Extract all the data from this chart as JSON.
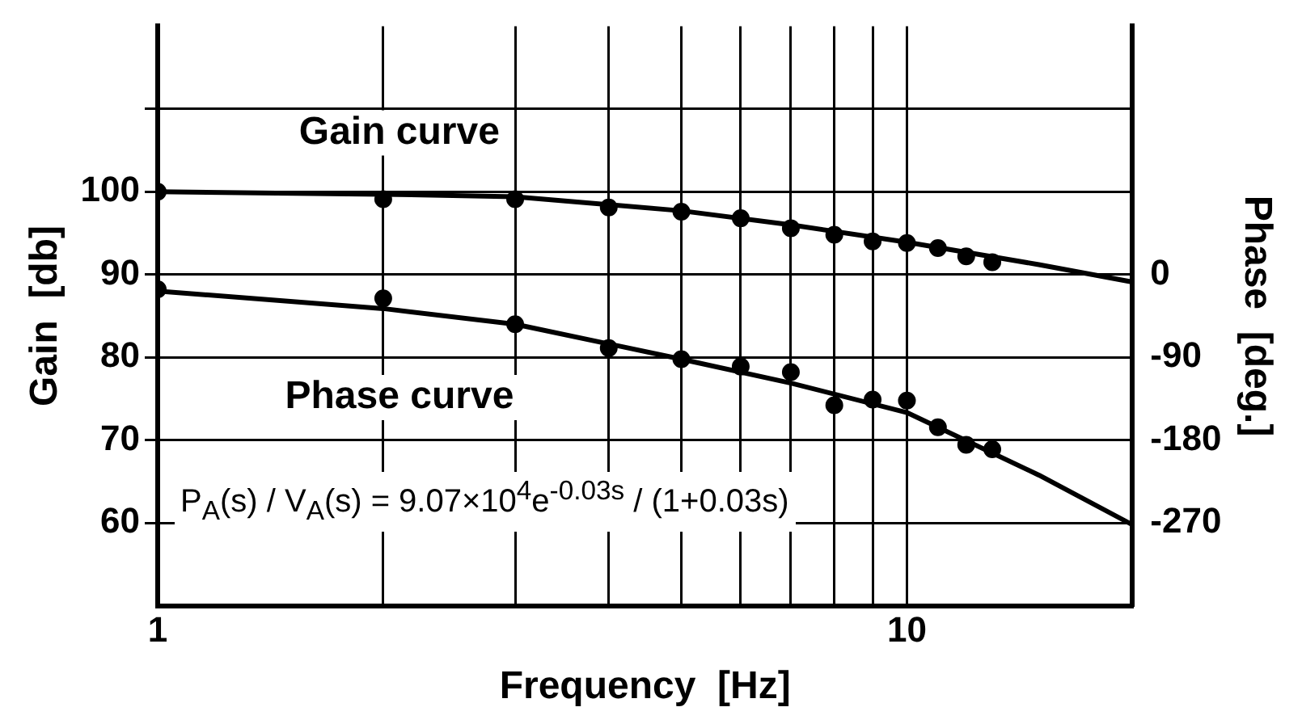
{
  "chart_data": {
    "type": "scatter",
    "xlabel": "Frequency  [Hz]",
    "ylabel": "Gain  [db]",
    "y2label": "Phase  [deg.]",
    "log": "x",
    "grid": true,
    "legend": false,
    "marker": "circle",
    "xlim": [
      1,
      20
    ],
    "xticks": [
      1,
      {
        "value": 2,
        "label": null
      },
      {
        "value": 3,
        "label": null
      },
      {
        "value": 4,
        "label": null
      },
      {
        "value": 5,
        "label": null
      },
      {
        "value": 6,
        "label": null
      },
      {
        "value": 7,
        "label": null
      },
      {
        "value": 8,
        "label": null
      },
      {
        "value": 9,
        "label": null
      },
      10
    ],
    "ylim": [
      50,
      120
    ],
    "yticks": [
      60,
      70,
      80,
      90,
      100,
      {
        "value": 110,
        "label": null
      }
    ],
    "y2lim": [
      -360,
      270
    ],
    "y2ticks": [
      -270,
      -180,
      -90,
      0
    ],
    "annotations": [
      "P$_{A}$(s) / V$_{A}$(s) = 9.07×10$^{4}$e$^{-0.03s}$ / (1+0.03s)"
    ],
    "series": [
      {
        "name": "Gain curve",
        "type": "line",
        "marker": "none",
        "color": "#000000",
        "x": [
          1,
          2,
          3,
          5,
          7,
          10,
          15,
          20
        ],
        "values": [
          100,
          99.7,
          99.4,
          97.7,
          96,
          93.9,
          91.2,
          89.1
        ]
      },
      {
        "type": "scatter",
        "color": "#000000",
        "x": [
          1,
          2,
          3,
          4,
          5,
          6,
          7,
          8,
          9,
          10,
          11,
          12,
          13
        ],
        "values": [
          100,
          99.1,
          99.1,
          98.1,
          97.6,
          96.8,
          95.6,
          94.8,
          94,
          93.8,
          93.2,
          92.2,
          91.5
        ]
      },
      {
        "name": "Phase curve",
        "type": "line",
        "marker": "none",
        "axis": "y2",
        "color": "#000000",
        "x": [
          1,
          2,
          3,
          5,
          7,
          10,
          15,
          20
        ],
        "values": [
          -18,
          -37,
          -54,
          -92,
          -118,
          -150,
          -218,
          -272
        ]
      },
      {
        "type": "scatter",
        "axis": "y2",
        "color": "#000000",
        "x": [
          1,
          2,
          3,
          4,
          5,
          6,
          7,
          8,
          9,
          10,
          11,
          12,
          13
        ],
        "values": [
          -16,
          -26,
          -54,
          -80,
          -92,
          -100,
          -106,
          -142,
          -136,
          -137,
          -166,
          -185,
          -190
        ]
      }
    ]
  }
}
